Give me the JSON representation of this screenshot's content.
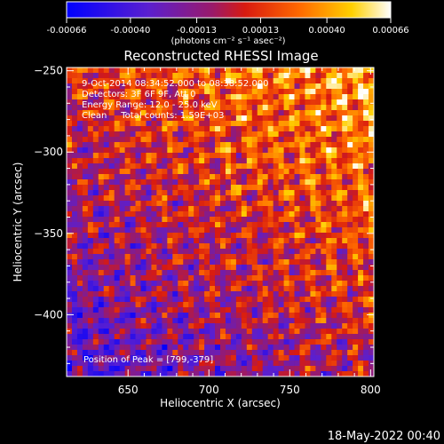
{
  "chart_data": {
    "type": "heatmap",
    "title": "Reconstructed RHESSI Image",
    "xlabel": "Heliocentric X (arcsec)",
    "ylabel": "Heliocentric Y (arcsec)",
    "xlim": [
      612,
      802
    ],
    "ylim": [
      -438,
      -248
    ],
    "xticks": [
      650,
      700,
      750,
      800
    ],
    "yticks": [
      -250,
      -300,
      -350,
      -400
    ],
    "colorbar": {
      "range": [
        -0.00066,
        0.00066
      ],
      "tick_values": [
        -0.00066,
        -0.0004,
        -0.00013,
        0.00013,
        0.0004,
        0.00066
      ],
      "tick_labels": [
        "-0.00066",
        "-0.00040",
        "-0.00013",
        "0.00013",
        "0.00040",
        "0.00066"
      ],
      "unit_label": "(photons cm⁻² s⁻¹ asec⁻²)",
      "colormap": "blue-purple-red-orange-yellow-white"
    },
    "annotations": [
      "9-Oct-2014 08:34:52.000 to 08:38:52.000",
      "Detectors: 3F 6F 9F, Att 0",
      "Energy Range: 12.0 - 25.0 keV",
      "Clean     Total counts: 1.59E+03"
    ],
    "peak_text": "Position of Peak = [799,-379]",
    "peak_position": [
      799,
      -379
    ]
  },
  "timestamp": "18-May-2022 00:40"
}
